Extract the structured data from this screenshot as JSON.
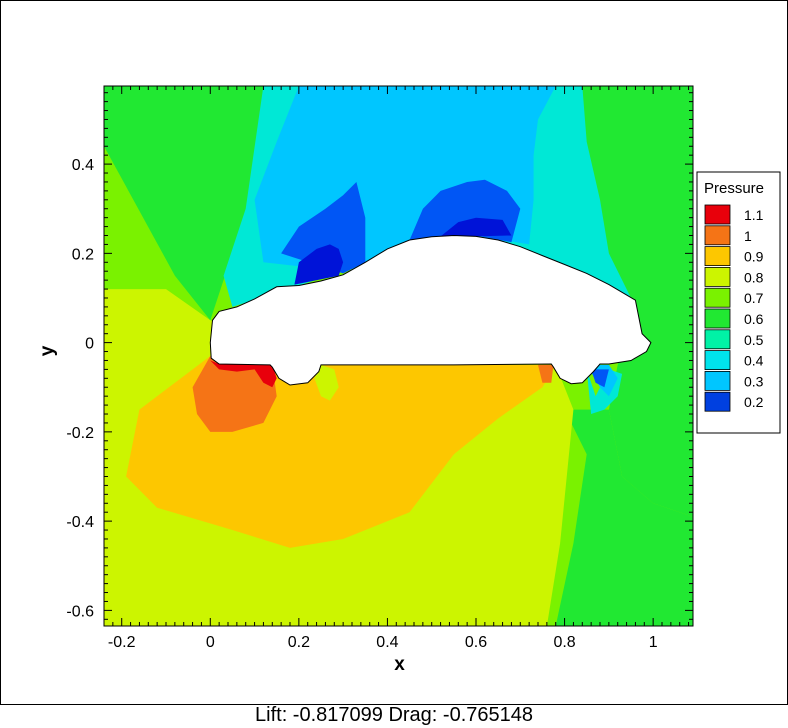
{
  "chart_data": {
    "type": "heatmap",
    "subtype": "filled-contour",
    "xlabel": "x",
    "ylabel": "y",
    "xlim": [
      -0.24,
      1.09
    ],
    "ylim": [
      -0.635,
      0.575
    ],
    "xticks": [
      {
        "value": -0.2,
        "label": "-0.2"
      },
      {
        "value": 0,
        "label": "0"
      },
      {
        "value": 0.2,
        "label": "0.2"
      },
      {
        "value": 0.4,
        "label": "0.4"
      },
      {
        "value": 0.6,
        "label": "0.6"
      },
      {
        "value": 0.8,
        "label": "0.8"
      },
      {
        "value": 1,
        "label": "1"
      }
    ],
    "yticks": [
      {
        "value": 0.4,
        "label": "0.4"
      },
      {
        "value": 0.2,
        "label": "0.2"
      },
      {
        "value": 0,
        "label": "0"
      },
      {
        "value": -0.2,
        "label": "-0.2"
      },
      {
        "value": -0.4,
        "label": "-0.4"
      },
      {
        "value": -0.6,
        "label": "-0.6"
      }
    ],
    "legend": {
      "title": "Pressure",
      "placement": "right",
      "entries": [
        {
          "label": "1.1",
          "color": "#e8000b"
        },
        {
          "label": "1",
          "color": "#f57416"
        },
        {
          "label": "0.9",
          "color": "#fdc700"
        },
        {
          "label": "0.8",
          "color": "#ccf500"
        },
        {
          "label": "0.7",
          "color": "#7af200"
        },
        {
          "label": "0.6",
          "color": "#21e832"
        },
        {
          "label": "0.5",
          "color": "#00f2a6"
        },
        {
          "label": "0.4",
          "color": "#00e4ec"
        },
        {
          "label": "0.3",
          "color": "#00c6ff"
        },
        {
          "label": "0.2",
          "color": "#0040e0"
        }
      ]
    },
    "levels": [
      {
        "value": 0.2,
        "color": "#0013d8"
      },
      {
        "value": 0.3,
        "color": "#0056f5"
      },
      {
        "value": 0.4,
        "color": "#00c6ff"
      },
      {
        "value": 0.5,
        "color": "#00e8d6"
      },
      {
        "value": 0.6,
        "color": "#21e832"
      },
      {
        "value": 0.7,
        "color": "#7af200"
      },
      {
        "value": 0.8,
        "color": "#ccf500"
      },
      {
        "value": 0.9,
        "color": "#fdc700"
      },
      {
        "value": 1.0,
        "color": "#f57416"
      },
      {
        "value": 1.1,
        "color": "#e8000b"
      }
    ],
    "body_outline": [
      [
        0.005,
        0.05
      ],
      [
        0.02,
        0.07
      ],
      [
        0.06,
        0.08
      ],
      [
        0.1,
        0.098
      ],
      [
        0.15,
        0.125
      ],
      [
        0.2,
        0.128
      ],
      [
        0.25,
        0.138
      ],
      [
        0.3,
        0.152
      ],
      [
        0.35,
        0.18
      ],
      [
        0.4,
        0.21
      ],
      [
        0.45,
        0.23
      ],
      [
        0.5,
        0.237
      ],
      [
        0.55,
        0.24
      ],
      [
        0.6,
        0.238
      ],
      [
        0.65,
        0.23
      ],
      [
        0.7,
        0.215
      ],
      [
        0.75,
        0.195
      ],
      [
        0.8,
        0.175
      ],
      [
        0.85,
        0.155
      ],
      [
        0.9,
        0.13
      ],
      [
        0.96,
        0.095
      ],
      [
        0.975,
        0.02
      ],
      [
        0.99,
        0.005
      ],
      [
        0.995,
        0.0
      ],
      [
        0.985,
        -0.02
      ],
      [
        0.95,
        -0.04
      ],
      [
        0.9,
        -0.048
      ],
      [
        0.88,
        -0.048
      ],
      [
        0.865,
        -0.065
      ],
      [
        0.84,
        -0.09
      ],
      [
        0.815,
        -0.092
      ],
      [
        0.79,
        -0.08
      ],
      [
        0.775,
        -0.055
      ],
      [
        0.77,
        -0.048
      ],
      [
        0.55,
        -0.05
      ],
      [
        0.25,
        -0.05
      ],
      [
        0.245,
        -0.065
      ],
      [
        0.22,
        -0.09
      ],
      [
        0.18,
        -0.095
      ],
      [
        0.155,
        -0.08
      ],
      [
        0.14,
        -0.055
      ],
      [
        0.135,
        -0.05
      ],
      [
        0.02,
        -0.048
      ],
      [
        0.002,
        -0.035
      ],
      [
        0.0,
        0.0
      ]
    ],
    "regions": [
      {
        "level": 0.7,
        "points": [
          [
            -0.24,
            0.575
          ],
          [
            1.09,
            0.575
          ],
          [
            1.09,
            -0.635
          ],
          [
            -0.24,
            -0.635
          ]
        ]
      },
      {
        "level": 0.6,
        "points": [
          [
            -0.24,
            0.575
          ],
          [
            0.18,
            0.575
          ],
          [
            0.1,
            0.3
          ],
          [
            0.05,
            0.2
          ],
          [
            0.0,
            0.05
          ],
          [
            -0.08,
            0.15
          ],
          [
            -0.24,
            0.44
          ]
        ]
      },
      {
        "level": 0.6,
        "points": [
          [
            0.7,
            0.575
          ],
          [
            1.09,
            0.575
          ],
          [
            1.09,
            -0.39
          ],
          [
            1.0,
            -0.36
          ],
          [
            0.93,
            -0.3
          ],
          [
            0.9,
            -0.15
          ],
          [
            0.92,
            -0.05
          ],
          [
            0.95,
            0.06
          ],
          [
            0.92,
            0.15
          ]
        ]
      },
      {
        "level": 0.6,
        "points": [
          [
            0.8,
            -0.15
          ],
          [
            0.85,
            -0.25
          ],
          [
            0.82,
            -0.45
          ],
          [
            0.78,
            -0.635
          ],
          [
            1.09,
            -0.635
          ],
          [
            1.09,
            -0.39
          ],
          [
            1.0,
            -0.36
          ],
          [
            0.93,
            -0.3
          ],
          [
            0.9,
            -0.15
          ]
        ]
      },
      {
        "level": 0.5,
        "points": [
          [
            0.12,
            0.575
          ],
          [
            0.84,
            0.575
          ],
          [
            0.85,
            0.45
          ],
          [
            0.88,
            0.32
          ],
          [
            0.9,
            0.2
          ],
          [
            0.95,
            0.1
          ],
          [
            0.6,
            0.24
          ],
          [
            0.3,
            0.16
          ],
          [
            0.05,
            0.08
          ],
          [
            0.03,
            0.15
          ],
          [
            0.08,
            0.3
          ]
        ]
      },
      {
        "level": 0.5,
        "points": [
          [
            0.85,
            -0.06
          ],
          [
            0.87,
            -0.12
          ],
          [
            0.9,
            -0.06
          ],
          [
            0.93,
            -0.07
          ],
          [
            0.92,
            -0.12
          ],
          [
            0.89,
            -0.15
          ],
          [
            0.86,
            -0.16
          ]
        ]
      },
      {
        "level": 0.4,
        "points": [
          [
            0.2,
            0.575
          ],
          [
            0.78,
            0.575
          ],
          [
            0.74,
            0.5
          ],
          [
            0.73,
            0.42
          ],
          [
            0.73,
            0.32
          ],
          [
            0.72,
            0.22
          ],
          [
            0.6,
            0.24
          ],
          [
            0.3,
            0.16
          ],
          [
            0.12,
            0.18
          ],
          [
            0.1,
            0.32
          ],
          [
            0.15,
            0.45
          ]
        ]
      },
      {
        "level": 0.4,
        "points": [
          [
            0.85,
            -0.05
          ],
          [
            0.88,
            -0.1
          ],
          [
            0.9,
            -0.12
          ],
          [
            0.92,
            -0.08
          ],
          [
            0.9,
            -0.05
          ]
        ]
      },
      {
        "level": 0.3,
        "points": [
          [
            0.16,
            0.2
          ],
          [
            0.2,
            0.26
          ],
          [
            0.26,
            0.3
          ],
          [
            0.3,
            0.33
          ],
          [
            0.33,
            0.36
          ],
          [
            0.35,
            0.28
          ],
          [
            0.35,
            0.18
          ],
          [
            0.3,
            0.155
          ]
        ]
      },
      {
        "level": 0.3,
        "points": [
          [
            0.45,
            0.23
          ],
          [
            0.48,
            0.3
          ],
          [
            0.52,
            0.34
          ],
          [
            0.58,
            0.36
          ],
          [
            0.62,
            0.365
          ],
          [
            0.67,
            0.34
          ],
          [
            0.7,
            0.3
          ],
          [
            0.68,
            0.225
          ],
          [
            0.6,
            0.24
          ]
        ]
      },
      {
        "level": 0.3,
        "points": [
          [
            0.86,
            -0.06
          ],
          [
            0.87,
            -0.09
          ],
          [
            0.89,
            -0.1
          ],
          [
            0.9,
            -0.06
          ]
        ]
      },
      {
        "level": 0.2,
        "points": [
          [
            0.19,
            0.13
          ],
          [
            0.2,
            0.18
          ],
          [
            0.24,
            0.21
          ],
          [
            0.27,
            0.22
          ],
          [
            0.29,
            0.21
          ],
          [
            0.3,
            0.18
          ],
          [
            0.29,
            0.15
          ]
        ]
      },
      {
        "level": 0.2,
        "points": [
          [
            0.52,
            0.238
          ],
          [
            0.56,
            0.27
          ],
          [
            0.6,
            0.28
          ],
          [
            0.66,
            0.275
          ],
          [
            0.68,
            0.24
          ],
          [
            0.6,
            0.238
          ]
        ]
      },
      {
        "level": 0.8,
        "points": [
          [
            -0.24,
            0.12
          ],
          [
            -0.1,
            0.12
          ],
          [
            0.0,
            0.05
          ],
          [
            0.25,
            -0.05
          ],
          [
            0.78,
            -0.05
          ],
          [
            0.82,
            -0.15
          ],
          [
            0.79,
            -0.45
          ],
          [
            0.76,
            -0.635
          ],
          [
            -0.24,
            -0.635
          ]
        ]
      },
      {
        "level": 0.9,
        "points": [
          [
            0.0,
            -0.03
          ],
          [
            -0.08,
            -0.09
          ],
          [
            -0.16,
            -0.15
          ],
          [
            -0.19,
            -0.3
          ],
          [
            -0.12,
            -0.37
          ],
          [
            0.05,
            -0.42
          ],
          [
            0.18,
            -0.46
          ],
          [
            0.3,
            -0.44
          ],
          [
            0.45,
            -0.38
          ],
          [
            0.55,
            -0.25
          ],
          [
            0.65,
            -0.17
          ],
          [
            0.75,
            -0.1
          ],
          [
            0.78,
            -0.05
          ],
          [
            0.25,
            -0.05
          ]
        ]
      },
      {
        "level": 1.0,
        "points": [
          [
            0.0,
            -0.03
          ],
          [
            -0.04,
            -0.1
          ],
          [
            -0.03,
            -0.16
          ],
          [
            0.0,
            -0.2
          ],
          [
            0.05,
            -0.2
          ],
          [
            0.12,
            -0.18
          ],
          [
            0.15,
            -0.12
          ],
          [
            0.14,
            -0.05
          ],
          [
            0.02,
            -0.048
          ]
        ]
      },
      {
        "level": 1.0,
        "points": [
          [
            0.74,
            -0.05
          ],
          [
            0.75,
            -0.09
          ],
          [
            0.77,
            -0.09
          ],
          [
            0.775,
            -0.05
          ]
        ]
      },
      {
        "level": 1.1,
        "points": [
          [
            0.0,
            -0.04
          ],
          [
            0.02,
            -0.06
          ],
          [
            0.06,
            -0.065
          ],
          [
            0.1,
            -0.06
          ],
          [
            0.12,
            -0.09
          ],
          [
            0.14,
            -0.1
          ],
          [
            0.15,
            -0.08
          ],
          [
            0.14,
            -0.05
          ],
          [
            0.02,
            -0.048
          ]
        ]
      },
      {
        "level": 0.8,
        "points": [
          [
            0.235,
            -0.08
          ],
          [
            0.25,
            -0.12
          ],
          [
            0.27,
            -0.13
          ],
          [
            0.29,
            -0.1
          ],
          [
            0.28,
            -0.06
          ],
          [
            0.25,
            -0.05
          ]
        ]
      }
    ]
  },
  "footer": {
    "text": "Lift: -0.817099 Drag: -0.765148"
  }
}
